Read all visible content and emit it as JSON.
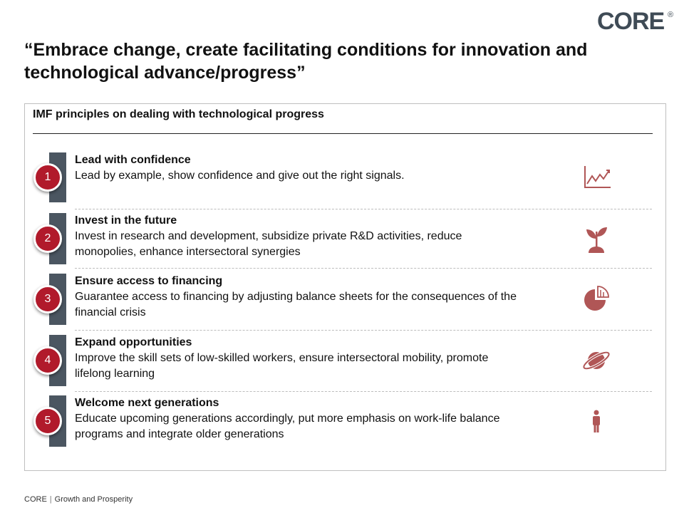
{
  "logo": {
    "text": "CORE",
    "mark": "®"
  },
  "headline": "“Embrace change, create facilitating conditions for innovation and technological advance/progress”",
  "panel": {
    "title": "IMF principles on dealing with technological progress",
    "items": [
      {
        "number": "1",
        "title": "Lead with confidence",
        "description": "Lead by example, show confidence and give out the right signals.",
        "icon": "growth-chart-icon"
      },
      {
        "number": "2",
        "title": "Invest in the future",
        "description": "Invest in research and development, subsidize private R&D activities, reduce monopolies, enhance intersectoral synergies",
        "icon": "sprout-icon"
      },
      {
        "number": "3",
        "title": "Ensure access to financing",
        "description": "Guarantee access to financing by adjusting balance sheets for the consequences of the financial crisis",
        "icon": "pie-chart-icon"
      },
      {
        "number": "4",
        "title": "Expand opportunities",
        "description": "Improve the skill sets of low-skilled workers, ensure intersectoral mobility, promote lifelong learning",
        "icon": "planet-icon"
      },
      {
        "number": "5",
        "title": "Welcome next generations",
        "description": "Educate upcoming generations accordingly, put more emphasis on work-life balance programs and integrate older generations",
        "icon": "person-icon"
      }
    ]
  },
  "footer": {
    "brand": "CORE",
    "separator": "|",
    "text": "Growth and Prosperity"
  },
  "colors": {
    "accent": "#b11a2b",
    "bar": "#4b5661",
    "icon": "#b05656",
    "logo": "#3f4b56"
  }
}
